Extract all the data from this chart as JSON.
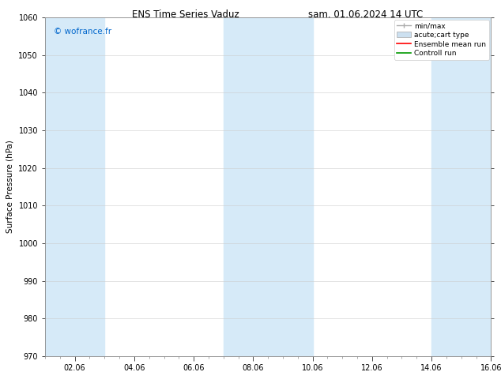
{
  "title_left": "ENS Time Series Vaduz",
  "title_right": "sam. 01.06.2024 14 UTC",
  "ylabel": "Surface Pressure (hPa)",
  "ylim": [
    970,
    1060
  ],
  "yticks": [
    970,
    980,
    990,
    1000,
    1010,
    1020,
    1030,
    1040,
    1050,
    1060
  ],
  "xtick_labels": [
    "02.06",
    "04.06",
    "06.06",
    "08.06",
    "10.06",
    "12.06",
    "14.06",
    "16.06"
  ],
  "watermark": "© wofrance.fr",
  "watermark_color": "#0066cc",
  "bg_color": "#ffffff",
  "plot_bg_color": "#ffffff",
  "shaded_bands": [
    {
      "x_start": 0,
      "x_end": 1,
      "color": "#d6eaf8"
    },
    {
      "x_start": 1,
      "x_end": 2,
      "color": "#d6eaf8"
    },
    {
      "x_start": 6,
      "x_end": 7,
      "color": "#d6eaf8"
    },
    {
      "x_start": 7,
      "x_end": 8,
      "color": "#d6eaf8"
    },
    {
      "x_start": 8,
      "x_end": 9,
      "color": "#d6eaf8"
    },
    {
      "x_start": 13,
      "x_end": 14,
      "color": "#d6eaf8"
    },
    {
      "x_start": 14,
      "x_end": 15,
      "color": "#d6eaf8"
    }
  ],
  "legend_entries": [
    {
      "label": "min/max",
      "type": "errorbar",
      "color": "#aaaaaa"
    },
    {
      "label": "acute;cart type",
      "type": "band",
      "color": "#c8ddf0"
    },
    {
      "label": "Ensemble mean run",
      "type": "line",
      "color": "#ff0000"
    },
    {
      "label": "Controll run",
      "type": "line",
      "color": "#007700"
    }
  ],
  "grid_color": "#cccccc",
  "tick_fontsize": 7,
  "label_fontsize": 7.5,
  "title_fontsize": 8.5,
  "n_days": 15,
  "xlim": [
    0,
    15
  ]
}
